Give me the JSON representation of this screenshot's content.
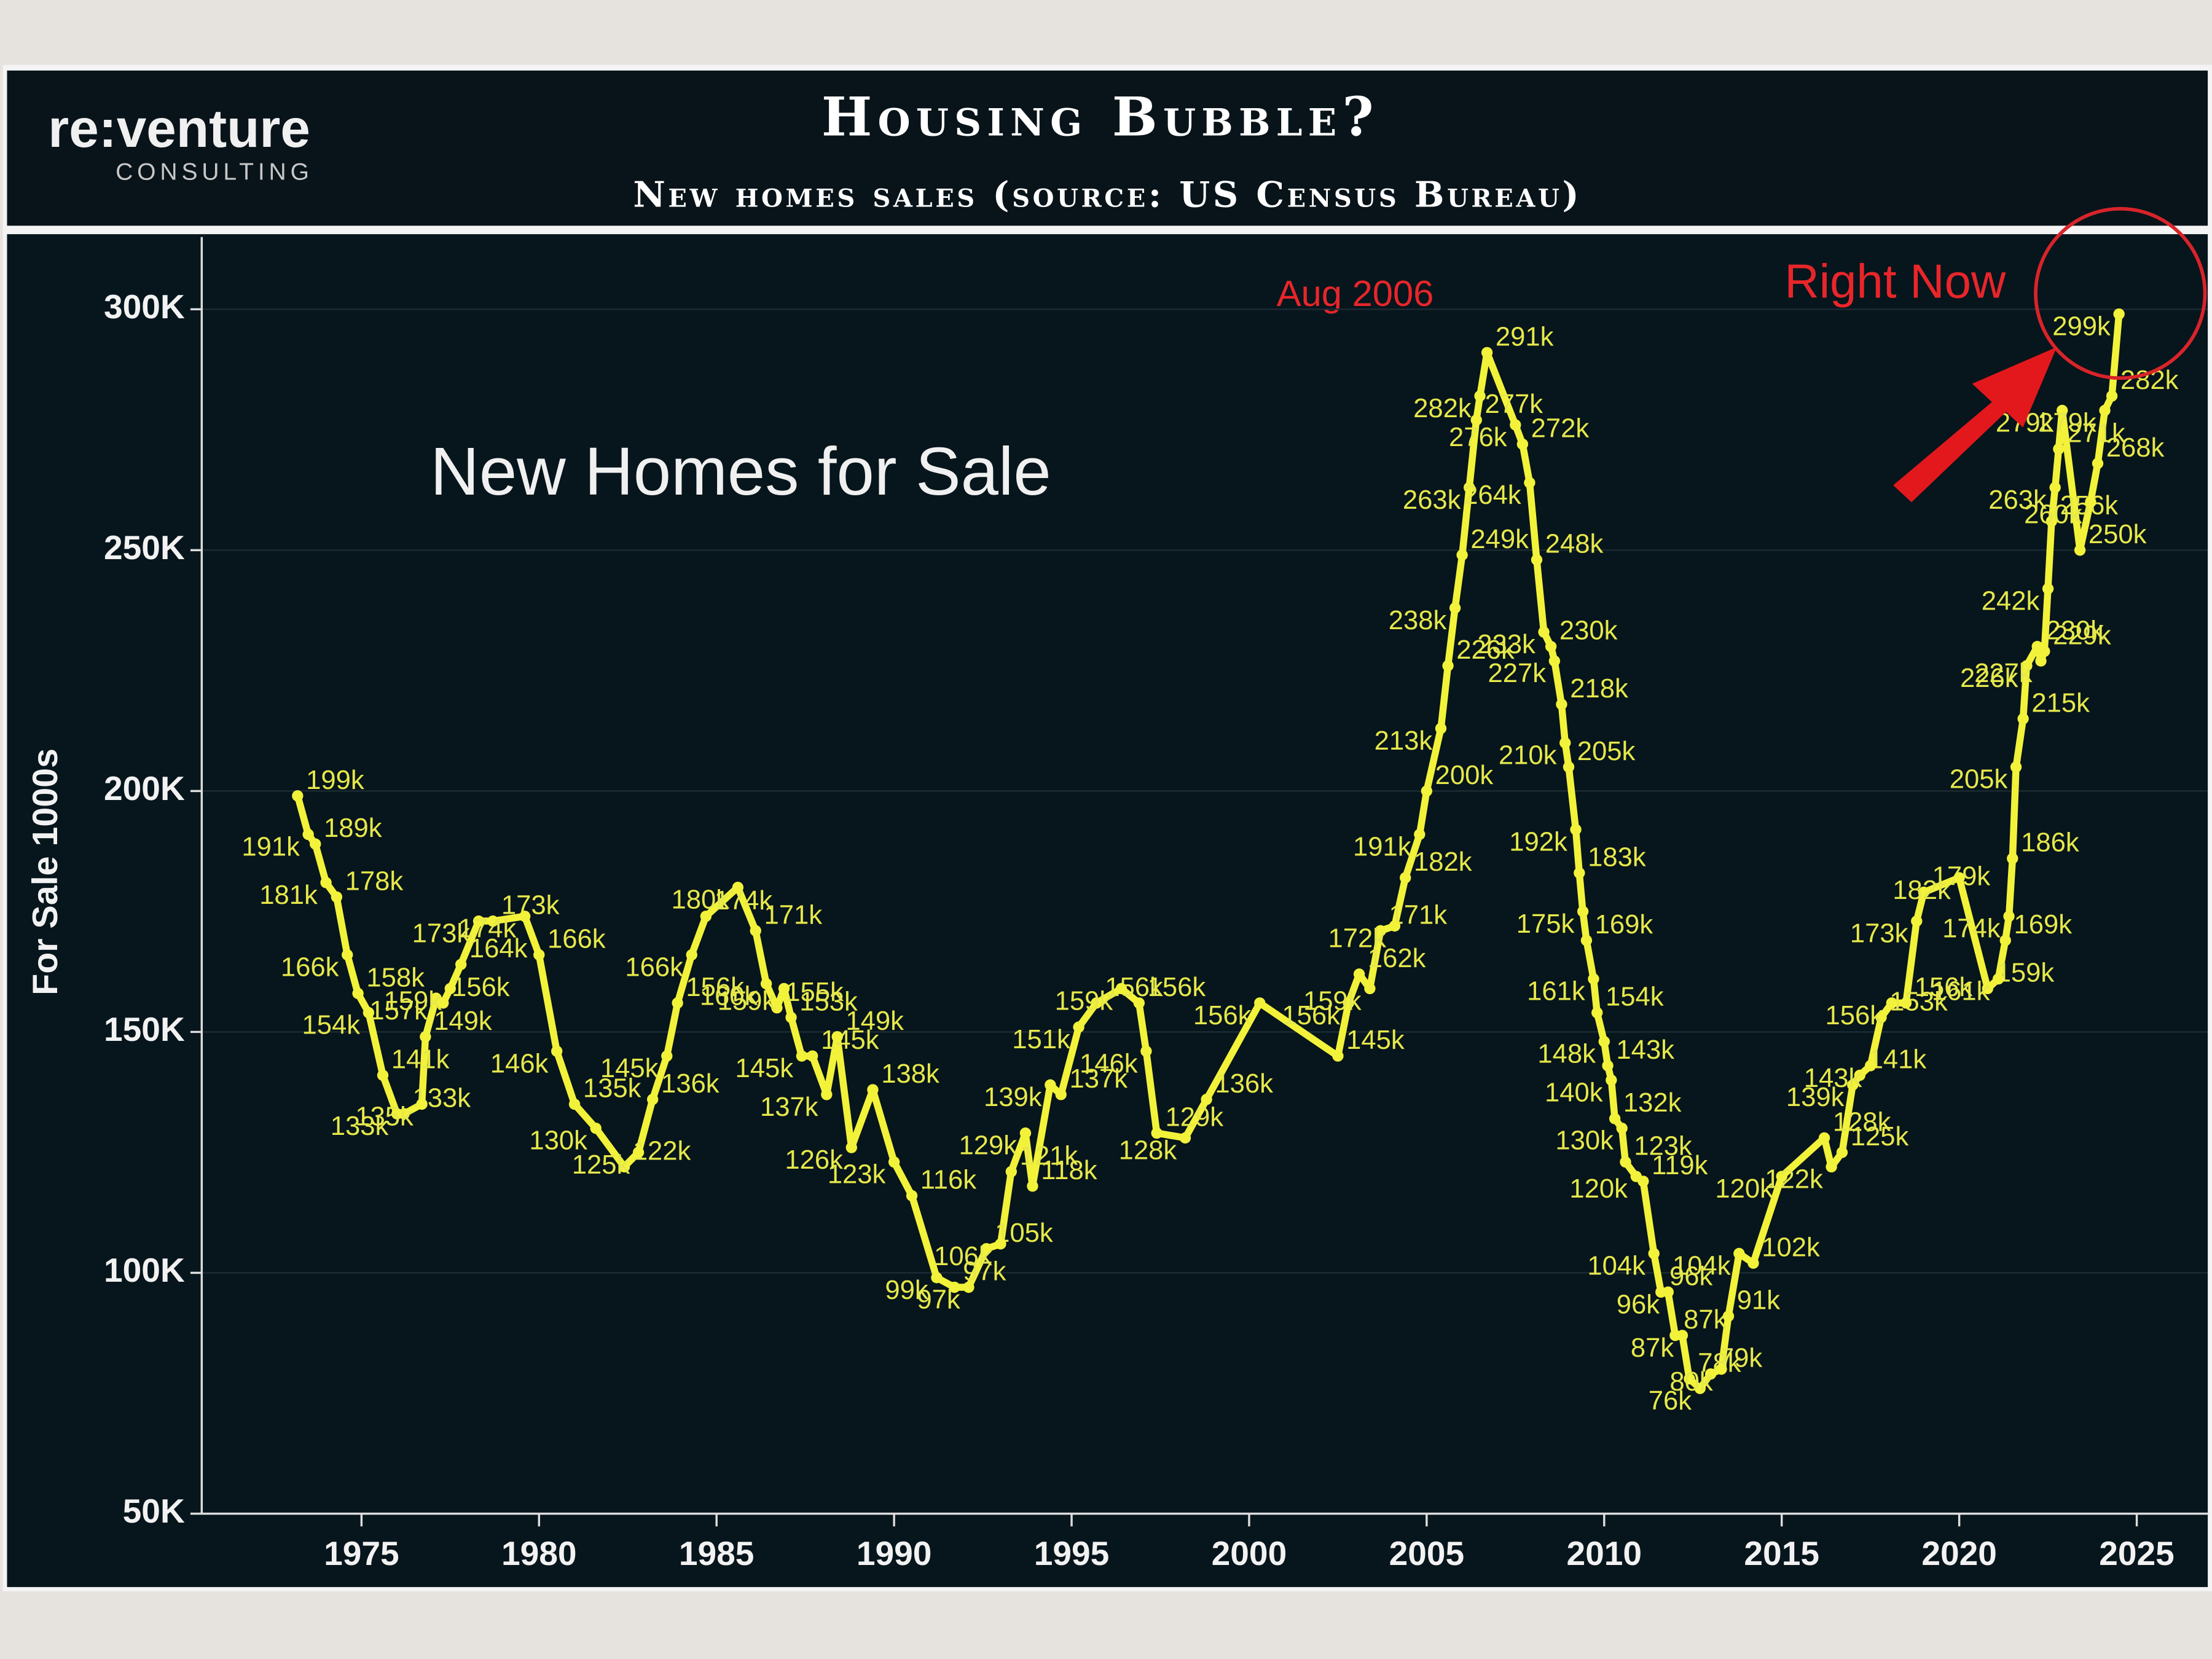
{
  "header": {
    "logo": "re:venture",
    "logo_sub": "CONSULTING"
  },
  "chart_data": {
    "type": "line",
    "title": "Housing Bubble?",
    "subtitle": "New homes sales (source: US Census Bureau)",
    "y_label": "For Sale 1000s",
    "annotations": [
      "New Homes for Sale",
      "Aug 2006",
      "Right Now"
    ],
    "xlim": [
      1970.5,
      2027
    ],
    "xticks": [
      1975,
      1980,
      1985,
      1990,
      1995,
      2000,
      2005,
      2010,
      2015,
      2020,
      2025
    ],
    "ylim": [
      50,
      315
    ],
    "yticks": [
      {
        "value": 50,
        "label": "50K"
      },
      {
        "value": 100,
        "label": "100K"
      },
      {
        "value": 150,
        "label": "150K"
      },
      {
        "value": 200,
        "label": "200K"
      },
      {
        "value": 250,
        "label": "250K"
      },
      {
        "value": 300,
        "label": "300K"
      }
    ],
    "grid": true,
    "x": [
      1973.2,
      1973.5,
      1973.7,
      1974.0,
      1974.3,
      1974.6,
      1974.9,
      1975.2,
      1975.6,
      1976.0,
      1976.2,
      1976.7,
      1976.8,
      1977.1,
      1977.3,
      1977.5,
      1977.8,
      1978.3,
      1978.7,
      1979.6,
      1980.0,
      1980.5,
      1981.0,
      1981.6,
      1982.4,
      1982.8,
      1983.2,
      1983.6,
      1983.9,
      1984.3,
      1984.7,
      1985.6,
      1986.1,
      1986.4,
      1986.7,
      1986.9,
      1987.1,
      1987.4,
      1987.7,
      1988.1,
      1988.4,
      1988.8,
      1989.4,
      1990.0,
      1990.5,
      1991.2,
      1991.7,
      1992.1,
      1992.6,
      1993.0,
      1993.3,
      1993.7,
      1993.9,
      1994.4,
      1994.7,
      1995.2,
      1995.7,
      1996.4,
      1996.9,
      1997.1,
      1997.4,
      1998.2,
      1998.8,
      2000.3,
      2002.5,
      2002.8,
      2003.1,
      2003.4,
      2003.7,
      2004.1,
      2004.4,
      2004.8,
      2005.0,
      2005.4,
      2005.6,
      2005.8,
      2006.0,
      2006.2,
      2006.4,
      2006.5,
      2006.7,
      2007.5,
      2007.7,
      2007.9,
      2008.1,
      2008.3,
      2008.5,
      2008.6,
      2008.8,
      2008.9,
      2009.0,
      2009.2,
      2009.3,
      2009.4,
      2009.5,
      2009.7,
      2009.8,
      2010.0,
      2010.1,
      2010.2,
      2010.3,
      2010.5,
      2010.6,
      2010.9,
      2011.1,
      2011.4,
      2011.6,
      2011.8,
      2012.0,
      2012.2,
      2012.4,
      2012.7,
      2013.0,
      2013.3,
      2013.5,
      2013.8,
      2014.2,
      2015.0,
      2016.2,
      2016.4,
      2016.7,
      2017.0,
      2017.2,
      2017.5,
      2017.8,
      2018.1,
      2018.5,
      2018.8,
      2019.0,
      2020.0,
      2020.8,
      2021.1,
      2021.3,
      2021.4,
      2021.5,
      2021.6,
      2021.8,
      2021.9,
      2022.2,
      2022.3,
      2022.4,
      2022.5,
      2022.6,
      2022.7,
      2022.8,
      2022.9,
      2023.4,
      2023.7,
      2023.9,
      2024.1,
      2024.3,
      2024.5
    ],
    "series": [
      {
        "color": "#f2f23a",
        "values": [
          199,
          191,
          189,
          181,
          178,
          166,
          158,
          154,
          141,
          133,
          133,
          135,
          149,
          157,
          156,
          159,
          164,
          173,
          173,
          174,
          166,
          146,
          135,
          130,
          122,
          125,
          136,
          145,
          156,
          166,
          174,
          180,
          171,
          160,
          155,
          159,
          153,
          145,
          145,
          137,
          149,
          126,
          138,
          123,
          116,
          99,
          97,
          97,
          105,
          106,
          121,
          129,
          118,
          139,
          137,
          151,
          156,
          159,
          156,
          146,
          129,
          128,
          136,
          156,
          145,
          156,
          162,
          159,
          171,
          172,
          182,
          191,
          200,
          213,
          226,
          238,
          249,
          263,
          277,
          282,
          291,
          276,
          272,
          264,
          248,
          233,
          230,
          227,
          218,
          210,
          205,
          192,
          183,
          175,
          169,
          161,
          154,
          148,
          143,
          140,
          132,
          130,
          123,
          120,
          119,
          104,
          96,
          96,
          87,
          87,
          78,
          76,
          79,
          80,
          91,
          104,
          102,
          120,
          128,
          122,
          125,
          139,
          141,
          143,
          153,
          156,
          156,
          173,
          179,
          182,
          159,
          161,
          169,
          174,
          186,
          205,
          215,
          226,
          230,
          227,
          229,
          242,
          256,
          263,
          271,
          279,
          250,
          260,
          268,
          279,
          282,
          299
        ],
        "value_labels": [
          "199k",
          "191k",
          "189k",
          "181k",
          "178k",
          "166k",
          "158k",
          "154k",
          "141k",
          "133k",
          "133k",
          "135k",
          "149k",
          "157k",
          "156k",
          "159k",
          "164k",
          "173k",
          "173k",
          "174k",
          "166k",
          "146k",
          "135k",
          "130k",
          "122k",
          "125k",
          "136k",
          "145k",
          "156k",
          "166k",
          "174k",
          "180k",
          "171k",
          "160k",
          "155k",
          "159k",
          "153k",
          "145k",
          "145k",
          "137k",
          "149k",
          "126k",
          "138k",
          "123k",
          "116k",
          "99k",
          "97k",
          "97k",
          "105k",
          "106k",
          "121k",
          "129k",
          "118k",
          "139k",
          "137k",
          "151k",
          "156k",
          "159k",
          "156k",
          "146k",
          "129k",
          "128k",
          "136k",
          "156k",
          "145k",
          "156k",
          "162k",
          "159k",
          "171k",
          "172k",
          "182k",
          "191k",
          "200k",
          "213k",
          "226k",
          "238k",
          "249k",
          "263k",
          "277k",
          "282k",
          "291k",
          "276k",
          "272k",
          "264k",
          "248k",
          "233k",
          "230k",
          "227k",
          "218k",
          "210k",
          "205k",
          "192k",
          "183k",
          "175k",
          "169k",
          "161k",
          "154k",
          "148k",
          "143k",
          "140k",
          "132k",
          "130k",
          "123k",
          "120k",
          "119k",
          "104k",
          "96k",
          "96k",
          "87k",
          "87k",
          "78k",
          "76k",
          "79k",
          "80k",
          "91k",
          "104k",
          "102k",
          "120k",
          "128k",
          "122k",
          "125k",
          "139k",
          "141k",
          "143k",
          "153k",
          "156k",
          "156k",
          "173k",
          "179k",
          "182k",
          "159k",
          "161k",
          "169k",
          "174k",
          "186k",
          "205k",
          "215k",
          "226k",
          "230k",
          "227k",
          "229k",
          "242k",
          "256k",
          "263k",
          "271k",
          "279k",
          "250k",
          "260k",
          "268k",
          "279k",
          "282k",
          "299k"
        ]
      }
    ]
  }
}
